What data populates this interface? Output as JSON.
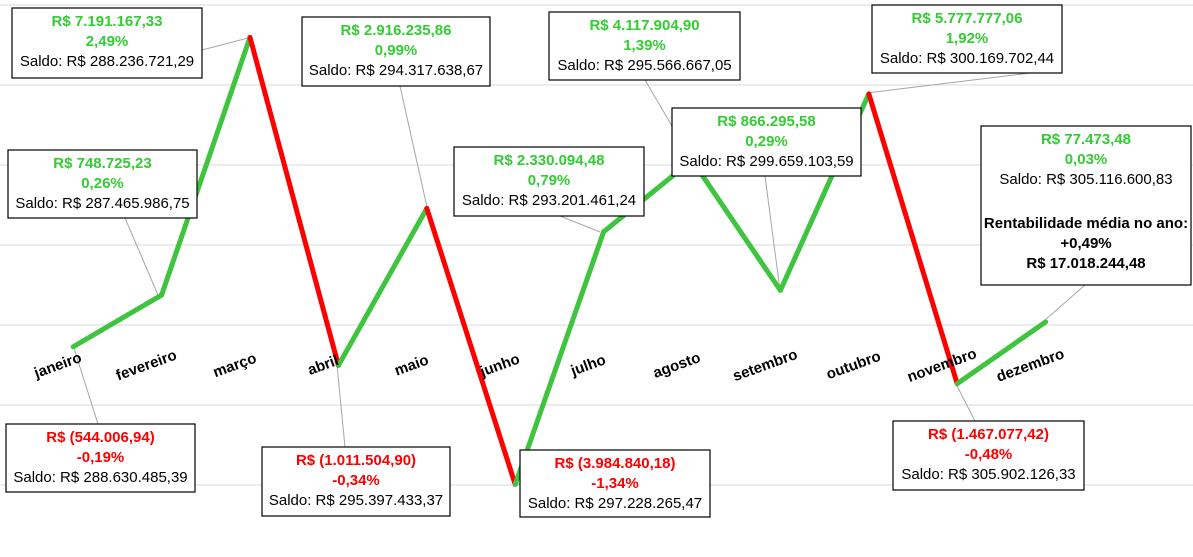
{
  "chart_data": {
    "type": "line",
    "categories": [
      "janeiro",
      "fevereiro",
      "março",
      "abril",
      "maio",
      "junho",
      "julho",
      "agosto",
      "setembro",
      "outubro",
      "novembro",
      "dezembro"
    ],
    "values": [
      -544006.94,
      748725.23,
      7191167.33,
      -1011504.9,
      2916235.86,
      -3984840.18,
      2330094.48,
      4117904.9,
      866295.58,
      5777777.06,
      -1467077.42,
      77473.48
    ],
    "value_labels": [
      "R$ (544.006,94)",
      "R$ 748.725,23",
      "R$ 7.191.167,33",
      "R$ (1.011.504,90)",
      "R$ 2.916.235,86",
      "R$ (3.984.840,18)",
      "R$ 2.330.094,48",
      "R$ 4.117.904,90",
      "R$ 866.295,58",
      "R$ 5.777.777,06",
      "R$ (1.467.077,42)",
      "R$ 77.473,48"
    ],
    "percent_labels": [
      "-0,19%",
      "0,26%",
      "2,49%",
      "-0,34%",
      "0,99%",
      "-1,34%",
      "0,79%",
      "1,39%",
      "0,29%",
      "1,92%",
      "-0,48%",
      "0,03%"
    ],
    "balance_labels": [
      "Saldo: R$ 288.630.485,39",
      "Saldo: R$ 287.465.986,75",
      "Saldo: R$ 288.236.721,29",
      "Saldo: R$ 295.397.433,37",
      "Saldo: R$ 294.317.638,67",
      "Saldo: R$ 297.228.265,47",
      "Saldo: R$ 293.201.461,24",
      "Saldo: R$ 295.566.667,05",
      "Saldo: R$ 299.659.103,59",
      "Saldo: R$ 300.169.702,44",
      "Saldo: R$ 305.902.126,33",
      "Saldo: R$ 305.116.600,83"
    ],
    "annotation": [
      "Rentabilidade média no ano:",
      "+0,49%",
      "R$ 17.018.244,48"
    ],
    "positive_color": "#3ec43e",
    "negative_color": "#ff0000",
    "ylim": [
      -4000000,
      8000000
    ],
    "yticks": [
      -4000000,
      -2000000,
      0,
      2000000,
      4000000,
      6000000,
      8000000
    ],
    "grid": true
  }
}
